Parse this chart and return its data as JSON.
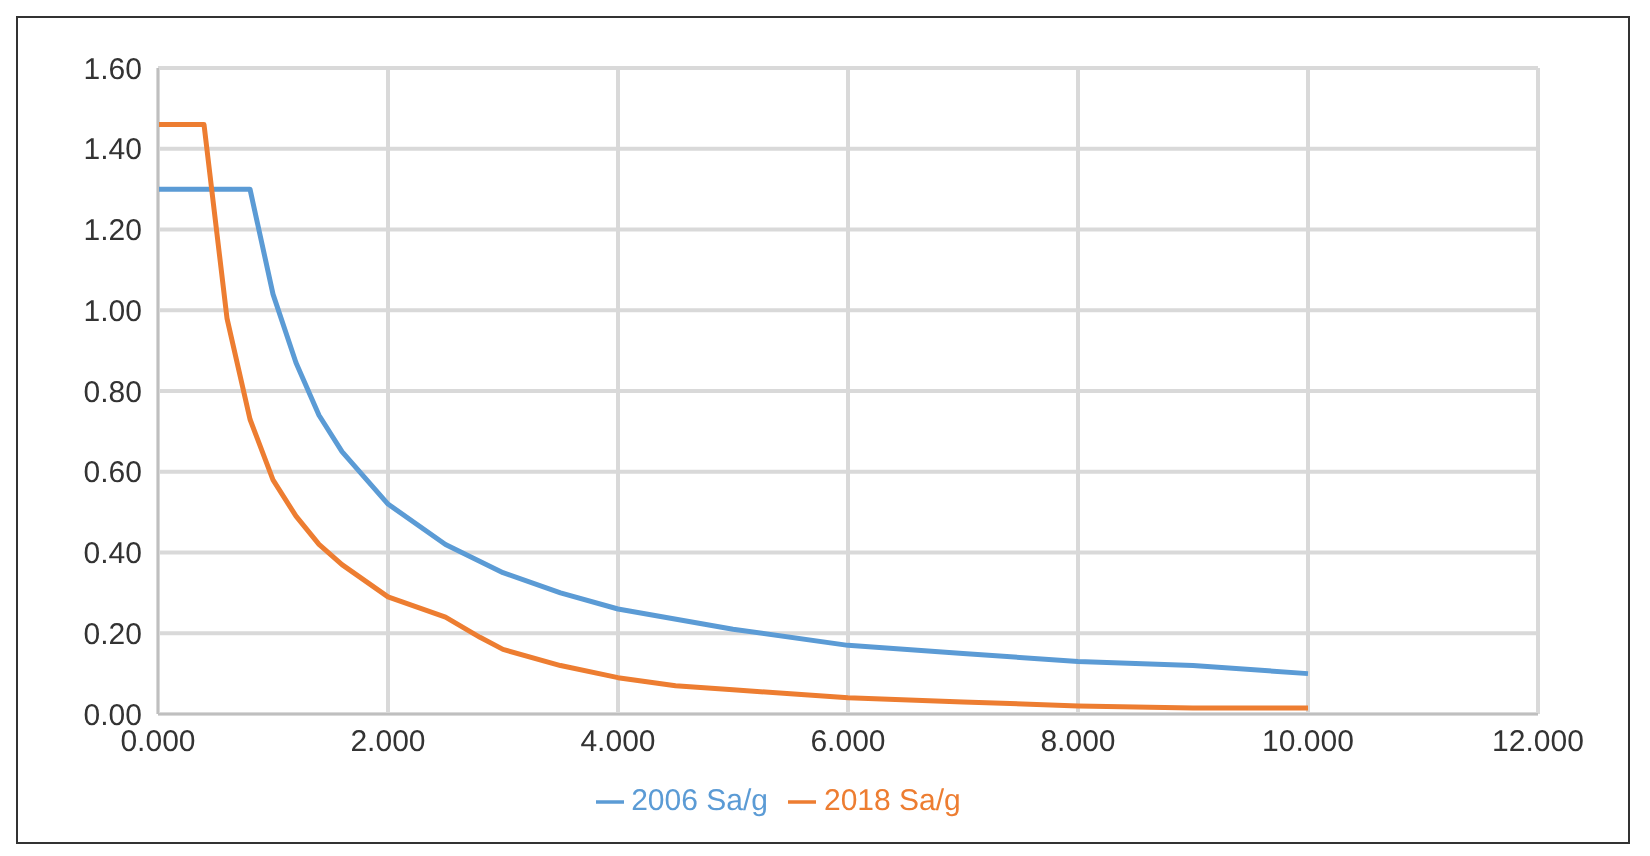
{
  "chart_data": {
    "type": "line",
    "grid": true,
    "legend": "bottom",
    "marker": "none",
    "line_style": "solid",
    "xlim": [
      0,
      12
    ],
    "xticks": [
      {
        "value": 0,
        "label": "0.000"
      },
      {
        "value": 2,
        "label": "2.000"
      },
      {
        "value": 4,
        "label": "4.000"
      },
      {
        "value": 6,
        "label": "6.000"
      },
      {
        "value": 8,
        "label": "8.000"
      },
      {
        "value": 10,
        "label": "10.000"
      },
      {
        "value": 12,
        "label": "12.000"
      }
    ],
    "ylim": [
      0,
      1.6
    ],
    "yticks": [
      {
        "value": 0,
        "label": "0.00"
      },
      {
        "value": 0.2,
        "label": "0.20"
      },
      {
        "value": 0.4,
        "label": "0.40"
      },
      {
        "value": 0.6,
        "label": "0.60"
      },
      {
        "value": 0.8,
        "label": "0.80"
      },
      {
        "value": 1,
        "label": "1.00"
      },
      {
        "value": 1.2,
        "label": "1.20"
      },
      {
        "value": 1.4,
        "label": "1.40"
      },
      {
        "value": 1.6,
        "label": "1.60"
      }
    ],
    "series": [
      {
        "name": "2006 Sa/g",
        "color": "#5b9bd5",
        "x": [
          0,
          0.8,
          1,
          1.2,
          1.4,
          1.6,
          2,
          2.5,
          3,
          3.5,
          4,
          5,
          6,
          7,
          8,
          9,
          10
        ],
        "values": [
          1.3,
          1.3,
          1.04,
          0.87,
          0.74,
          0.65,
          0.52,
          0.42,
          0.35,
          0.3,
          0.26,
          0.21,
          0.17,
          0.15,
          0.13,
          0.12,
          0.1
        ]
      },
      {
        "name": "2018 Sa/g",
        "color": "#ed7d31",
        "x": [
          0,
          0.4,
          0.6,
          0.8,
          1,
          1.2,
          1.4,
          1.6,
          2,
          2.5,
          2.8,
          3,
          3.5,
          4,
          4.5,
          5,
          5.5,
          6,
          7,
          8,
          9,
          10
        ],
        "values": [
          1.46,
          1.46,
          0.98,
          0.73,
          0.58,
          0.49,
          0.42,
          0.37,
          0.29,
          0.24,
          0.19,
          0.16,
          0.12,
          0.09,
          0.07,
          0.06,
          0.05,
          0.04,
          0.03,
          0.02,
          0.015,
          0.015
        ]
      }
    ]
  }
}
